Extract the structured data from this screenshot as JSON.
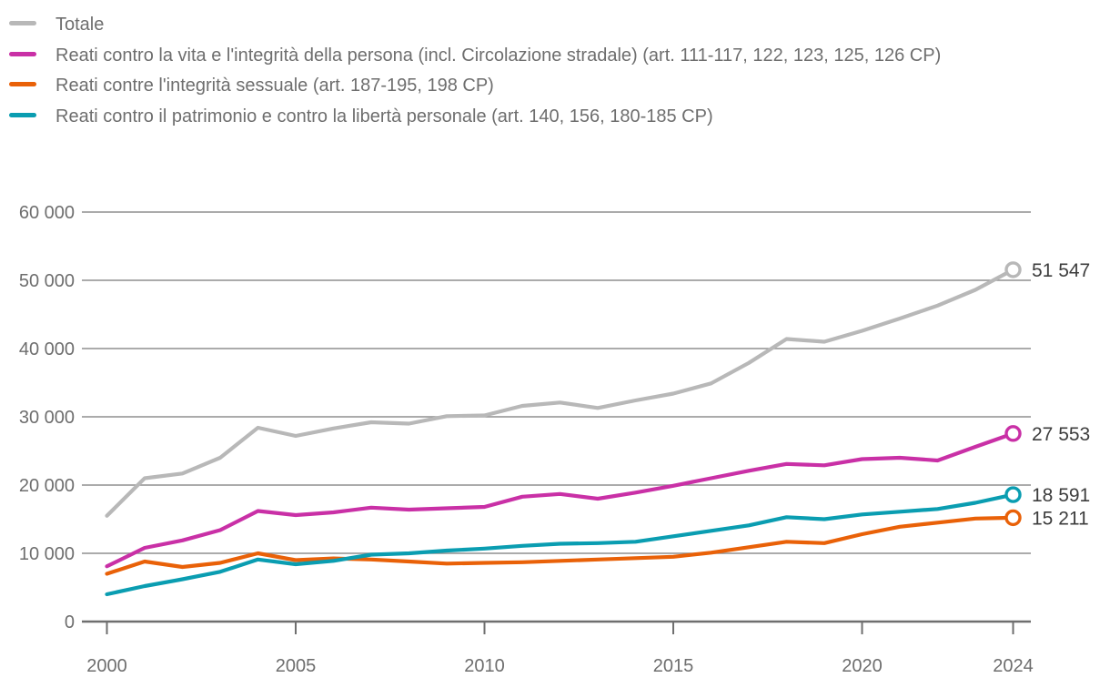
{
  "chart_data": {
    "type": "line",
    "title": "",
    "xlabel": "",
    "ylabel": "",
    "x": [
      2000,
      2001,
      2002,
      2003,
      2004,
      2005,
      2006,
      2007,
      2008,
      2009,
      2010,
      2011,
      2012,
      2013,
      2014,
      2015,
      2016,
      2017,
      2018,
      2019,
      2020,
      2021,
      2022,
      2023,
      2024
    ],
    "xlim": [
      2000,
      2024
    ],
    "ylim": [
      0,
      60000
    ],
    "grid": true,
    "legend_position": "top-left",
    "yticks": [
      {
        "v": 0,
        "label": "0"
      },
      {
        "v": 10000,
        "label": "10 000"
      },
      {
        "v": 20000,
        "label": "20 000"
      },
      {
        "v": 30000,
        "label": "30 000"
      },
      {
        "v": 40000,
        "label": "40 000"
      },
      {
        "v": 50000,
        "label": "50 000"
      },
      {
        "v": 60000,
        "label": "60 000"
      }
    ],
    "xticks": [
      {
        "v": 2000,
        "label": "2000"
      },
      {
        "v": 2005,
        "label": "2005"
      },
      {
        "v": 2010,
        "label": "2010"
      },
      {
        "v": 2015,
        "label": "2015"
      },
      {
        "v": 2020,
        "label": "2020"
      },
      {
        "v": 2024,
        "label": "2024"
      }
    ],
    "series": [
      {
        "name": "Totale",
        "color": "#b8b8b8",
        "end_value": 51547,
        "end_label": "51 547",
        "values": [
          15500,
          21000,
          21700,
          24000,
          28400,
          27200,
          28300,
          29200,
          29000,
          30100,
          30200,
          31600,
          32100,
          31300,
          32400,
          33400,
          34900,
          37900,
          41400,
          41000,
          42600,
          44400,
          46300,
          48600,
          51547
        ]
      },
      {
        "name": "Reati contro la vita e l'integrità della persona (incl. Circolazione stradale) (art. 111-117, 122, 123, 125, 126 CP)",
        "color": "#c930a6",
        "end_value": 27553,
        "end_label": "27 553",
        "values": [
          8100,
          10800,
          11900,
          13400,
          16200,
          15600,
          16000,
          16700,
          16400,
          16600,
          16800,
          18300,
          18700,
          18000,
          18900,
          19900,
          21000,
          22100,
          23100,
          22900,
          23800,
          24000,
          23600,
          25600,
          27553
        ]
      },
      {
        "name": "Reati contre l'integrità sessuale (art. 187-195, 198 CP)",
        "color": "#e96108",
        "end_value": 15211,
        "end_label": "15 211",
        "values": [
          7000,
          8800,
          8000,
          8600,
          10000,
          9000,
          9250,
          9100,
          8800,
          8500,
          8600,
          8700,
          8900,
          9100,
          9300,
          9500,
          10100,
          10900,
          11700,
          11500,
          12800,
          13900,
          14500,
          15100,
          15211
        ]
      },
      {
        "name": "Reati contro il patrimonio e contro la libertà personale (art. 140, 156, 180-185 CP)",
        "color": "#0a9db1",
        "end_value": 18591,
        "end_label": "18 591",
        "values": [
          4000,
          5200,
          6200,
          7300,
          9100,
          8400,
          8900,
          9800,
          10000,
          10400,
          10700,
          11100,
          11400,
          11500,
          11700,
          12500,
          13300,
          14100,
          15300,
          15000,
          15700,
          16100,
          16500,
          17400,
          18591
        ]
      }
    ],
    "colors": {
      "gridline": "#8f8f8f",
      "axis": "#6f6f6f",
      "tick_label": "#6e6e6e",
      "end_label": "#3d3d3d",
      "background": "#ffffff"
    }
  }
}
